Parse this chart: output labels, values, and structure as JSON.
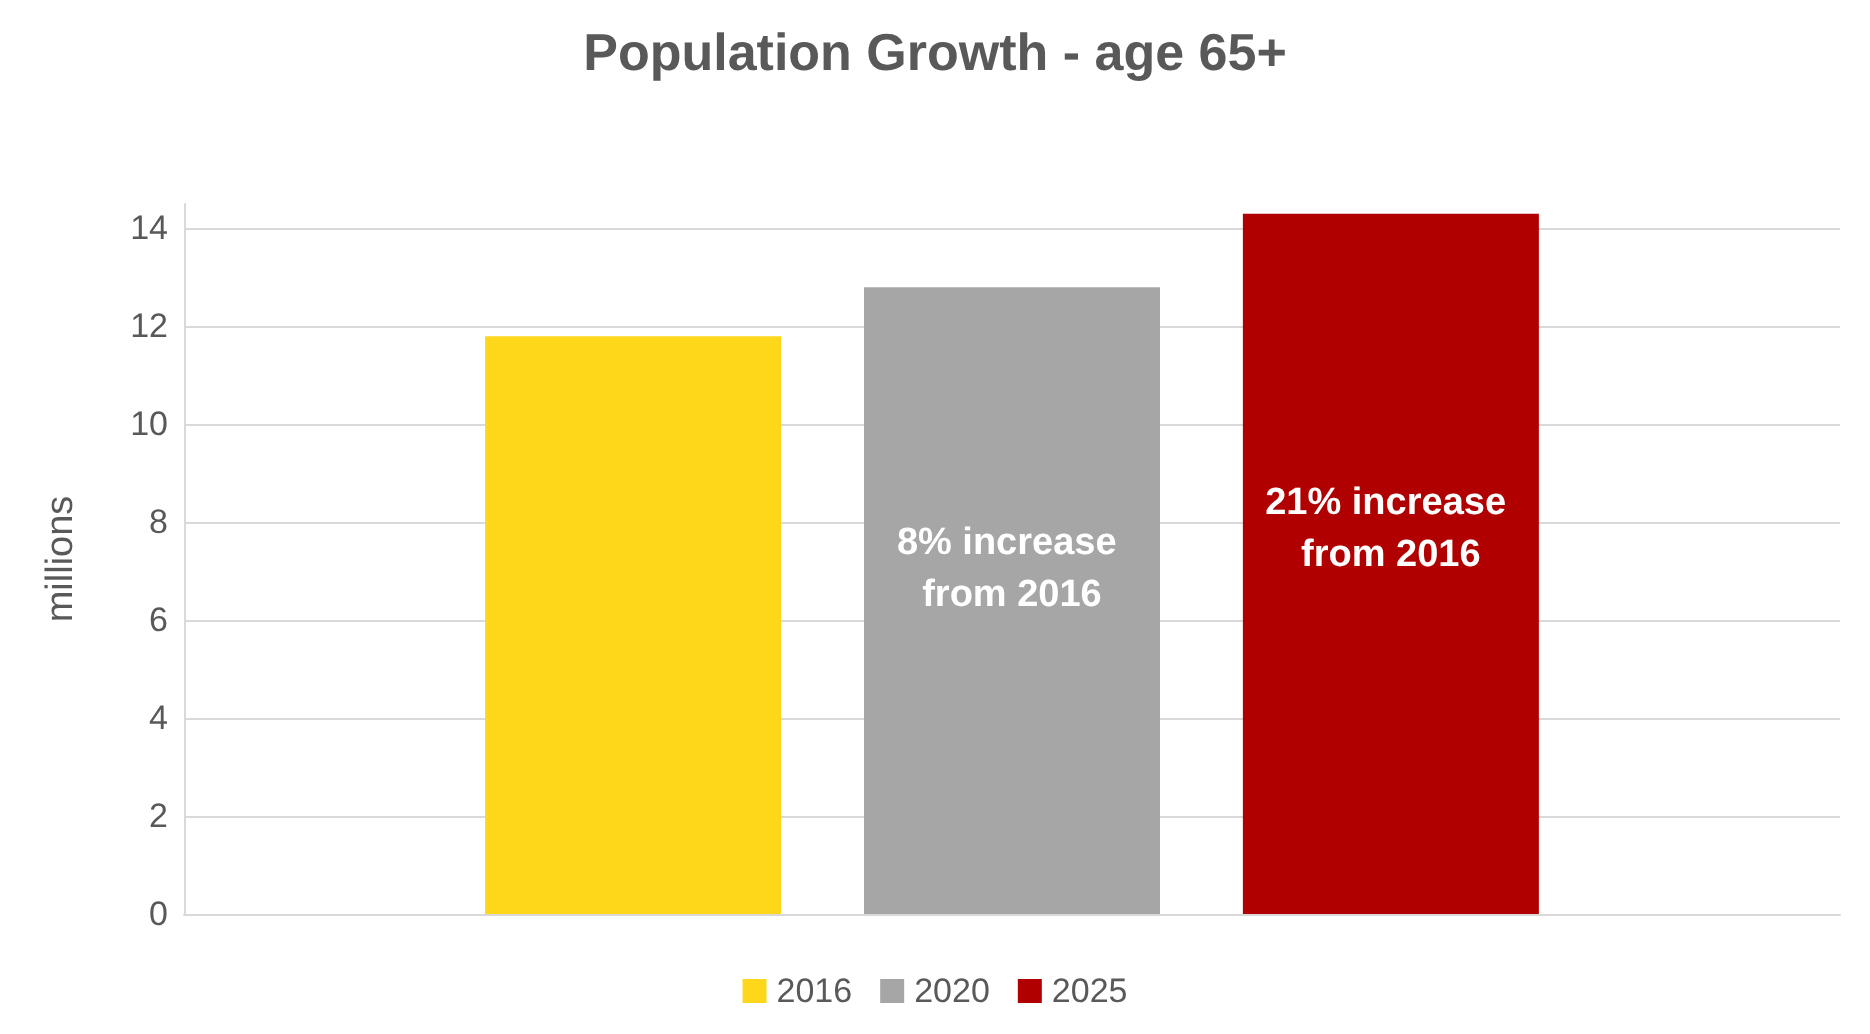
{
  "chart_data": {
    "type": "bar",
    "title": "Population Growth - age 65+",
    "ylabel": "millions",
    "categories": [
      null
    ],
    "series": [
      {
        "name": "2016",
        "color": "#ffd71a",
        "values": [
          11.8
        ]
      },
      {
        "name": "2020",
        "color": "#a6a6a6",
        "values": [
          12.8
        ]
      },
      {
        "name": "2025",
        "color": "#b00000",
        "values": [
          14.3
        ]
      }
    ],
    "annotations": [
      "8% increase from 2016",
      "21% increase from 2016"
    ],
    "ylim": [
      0,
      14.5
    ],
    "yticks": [
      0,
      2,
      4,
      6,
      8,
      10,
      12,
      14
    ],
    "grid": "y",
    "legend": "bottom"
  }
}
